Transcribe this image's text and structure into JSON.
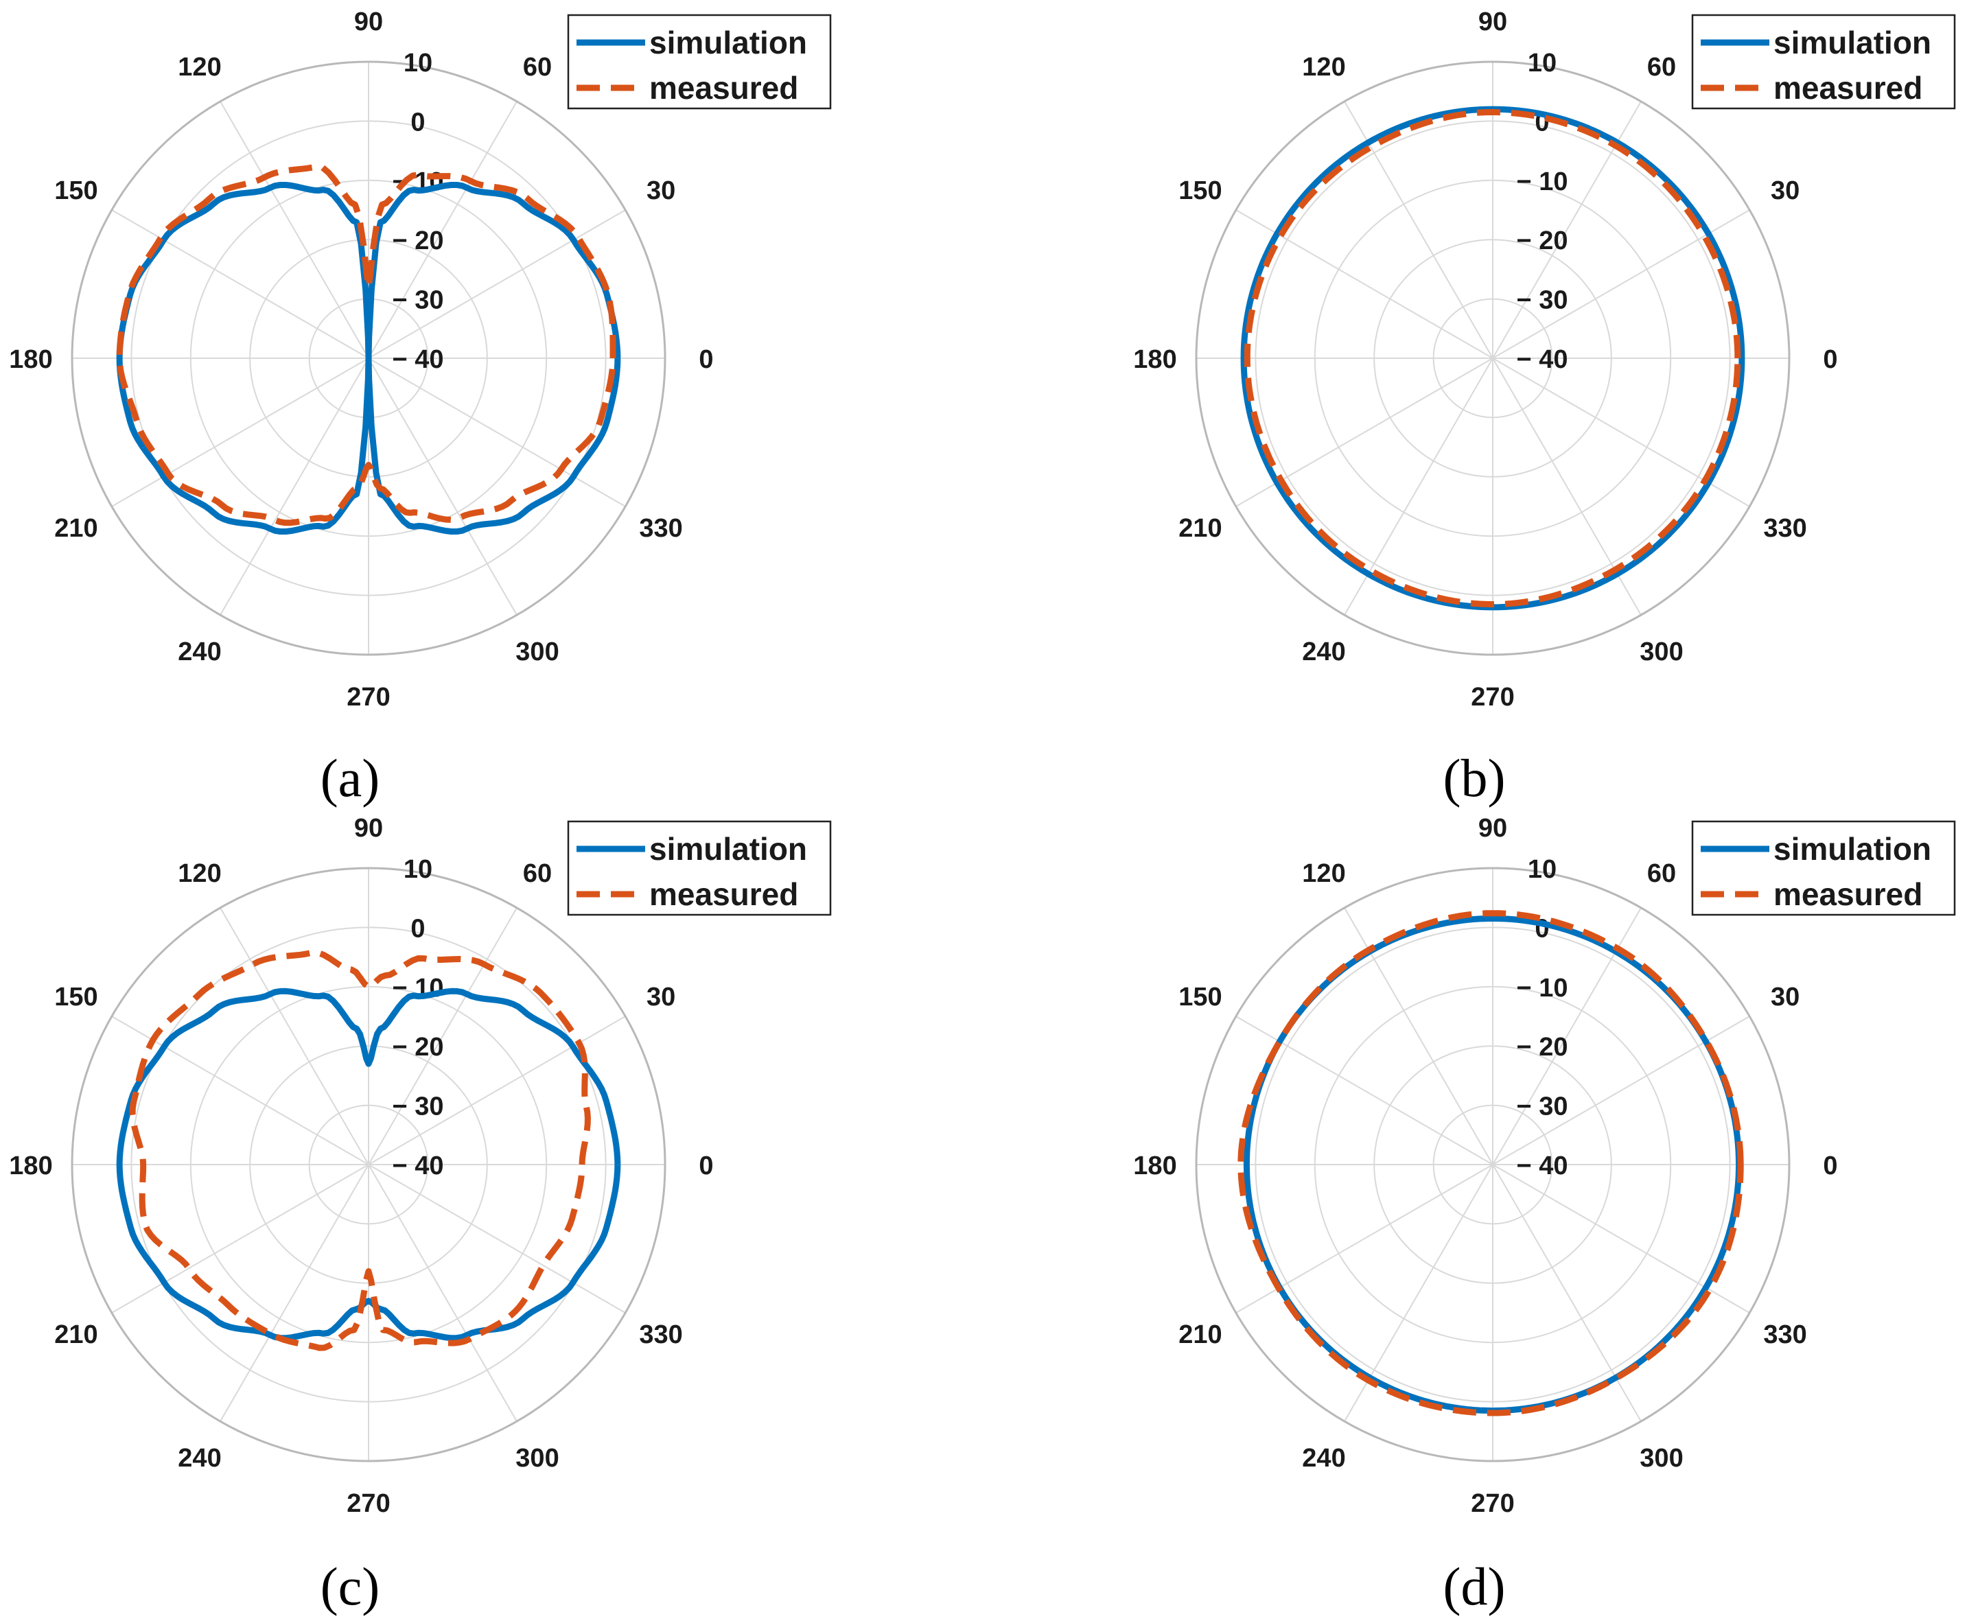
{
  "colors": {
    "simulation": "#0072BD",
    "measured": "#D95319",
    "grid": "#d9d9d9",
    "outer": "#b8b8b8"
  },
  "chart_data": [
    {
      "type": "polar",
      "caption": "(a)",
      "theta_ticks": [
        "0",
        "30",
        "60",
        "90",
        "120",
        "150",
        "180",
        "210",
        "240",
        "270",
        "300",
        "330"
      ],
      "r_ticks": [
        "10",
        "0",
        "− 10",
        "− 20",
        "− 30",
        "− 40"
      ],
      "rlim": [
        -40,
        10
      ],
      "grid": true,
      "legend_position": "top-right",
      "series": [
        {
          "name": "simulation",
          "style": "solid",
          "theta": [
            0,
            15,
            30,
            45,
            60,
            75,
            85,
            90,
            95,
            105,
            120,
            135,
            150,
            165,
            180,
            195,
            210,
            225,
            240,
            255,
            265,
            270,
            275,
            285,
            300,
            315,
            330,
            345,
            360
          ],
          "r": [
            2,
            1.6,
            -0.1,
            -3.1,
            -6.8,
            -10.6,
            -17,
            -40,
            -17,
            -10.6,
            -6.8,
            -3.1,
            -0.1,
            1.6,
            2,
            1.6,
            -0.1,
            -3.1,
            -6.8,
            -10.6,
            -17,
            -40,
            -17,
            -10.6,
            -6.8,
            -3.1,
            -0.1,
            1.6,
            2
          ]
        },
        {
          "name": "measured",
          "style": "dashed",
          "theta": [
            0,
            15,
            30,
            45,
            60,
            75,
            85,
            90,
            95,
            105,
            120,
            135,
            150,
            165,
            180,
            195,
            210,
            225,
            240,
            255,
            265,
            270,
            275,
            285,
            300,
            315,
            330,
            345,
            360
          ],
          "r": [
            1.2,
            1.8,
            0.8,
            -2,
            -5.5,
            -8,
            -14,
            -28,
            -14,
            -6.5,
            -4.8,
            -2,
            0.5,
            1.8,
            2,
            0.5,
            -1,
            -5,
            -8.5,
            -12,
            -18,
            -22,
            -18,
            -13,
            -9,
            -6,
            -2.5,
            0.5,
            1.2
          ]
        }
      ]
    },
    {
      "type": "polar",
      "caption": "(b)",
      "theta_ticks": [
        "0",
        "30",
        "60",
        "90",
        "120",
        "150",
        "180",
        "210",
        "240",
        "270",
        "300",
        "330"
      ],
      "r_ticks": [
        "10",
        "0",
        "− 10",
        "− 20",
        "− 30",
        "− 40"
      ],
      "rlim": [
        -40,
        10
      ],
      "grid": true,
      "legend_position": "top-right",
      "series": [
        {
          "name": "simulation",
          "style": "solid",
          "theta": [
            0,
            45,
            90,
            135,
            180,
            225,
            270,
            315,
            360
          ],
          "r": [
            2,
            2,
            2,
            2,
            2,
            2,
            2,
            2,
            2
          ]
        },
        {
          "name": "measured",
          "style": "dashed",
          "theta": [
            0,
            30,
            60,
            90,
            120,
            150,
            180,
            210,
            240,
            270,
            300,
            330,
            360
          ],
          "r": [
            1.3,
            1.2,
            1.4,
            1.5,
            1.1,
            1.3,
            1.4,
            1.2,
            1.3,
            1.5,
            1.2,
            1.3,
            1.3
          ]
        }
      ]
    },
    {
      "type": "polar",
      "caption": "(c)",
      "theta_ticks": [
        "0",
        "30",
        "60",
        "90",
        "120",
        "150",
        "180",
        "210",
        "240",
        "270",
        "300",
        "330"
      ],
      "r_ticks": [
        "10",
        "0",
        "− 10",
        "− 20",
        "− 30",
        "− 40"
      ],
      "rlim": [
        -40,
        10
      ],
      "grid": true,
      "legend_position": "top-right",
      "series": [
        {
          "name": "simulation",
          "style": "solid",
          "theta": [
            0,
            15,
            30,
            45,
            60,
            75,
            85,
            90,
            95,
            105,
            120,
            135,
            150,
            165,
            180,
            195,
            210,
            225,
            240,
            255,
            265,
            270,
            275,
            285,
            300,
            315,
            330,
            345,
            360
          ],
          "r": [
            2,
            1.5,
            -0.2,
            -3.2,
            -6.8,
            -10.5,
            -17,
            -23,
            -17,
            -10.5,
            -6.8,
            -3.2,
            -0.2,
            1.5,
            2,
            1.5,
            -0.2,
            -3.2,
            -6.8,
            -10.5,
            -15.5,
            -17,
            -15.5,
            -10.5,
            -6.8,
            -3.2,
            -0.2,
            1.5,
            2
          ]
        },
        {
          "name": "measured",
          "style": "dashed",
          "theta": [
            0,
            15,
            30,
            45,
            60,
            75,
            85,
            90,
            95,
            105,
            120,
            135,
            150,
            165,
            180,
            195,
            210,
            225,
            240,
            255,
            265,
            270,
            275,
            285,
            300,
            315,
            330,
            345,
            360
          ],
          "r": [
            -4,
            -2,
            1,
            1,
            -1,
            -4,
            -8,
            -10,
            -7,
            -3,
            -1,
            0.5,
            2,
            1,
            -2,
            -1,
            -5,
            -6.5,
            -7,
            -8,
            -12,
            -22,
            -12,
            -9,
            -6,
            -5,
            -6,
            -4.5,
            -4
          ]
        }
      ]
    },
    {
      "type": "polar",
      "caption": "(d)",
      "theta_ticks": [
        "0",
        "30",
        "60",
        "90",
        "120",
        "150",
        "180",
        "210",
        "240",
        "270",
        "300",
        "330"
      ],
      "r_ticks": [
        "10",
        "0",
        "− 10",
        "− 20",
        "− 30",
        "− 40"
      ],
      "rlim": [
        -40,
        10
      ],
      "grid": true,
      "legend_position": "top-right",
      "series": [
        {
          "name": "simulation",
          "style": "solid",
          "theta": [
            0,
            45,
            90,
            135,
            180,
            225,
            270,
            315,
            360
          ],
          "r": [
            1.5,
            1.5,
            1.5,
            1.5,
            1.5,
            1.5,
            1.5,
            1.5,
            1.5
          ]
        },
        {
          "name": "measured",
          "style": "dashed",
          "theta": [
            0,
            30,
            60,
            90,
            120,
            150,
            180,
            210,
            240,
            270,
            300,
            330,
            360
          ],
          "r": [
            1.8,
            1.6,
            2.1,
            2.4,
            1.8,
            1.5,
            2.5,
            1.7,
            2,
            1.9,
            1.6,
            2.2,
            1.8
          ]
        }
      ]
    }
  ]
}
